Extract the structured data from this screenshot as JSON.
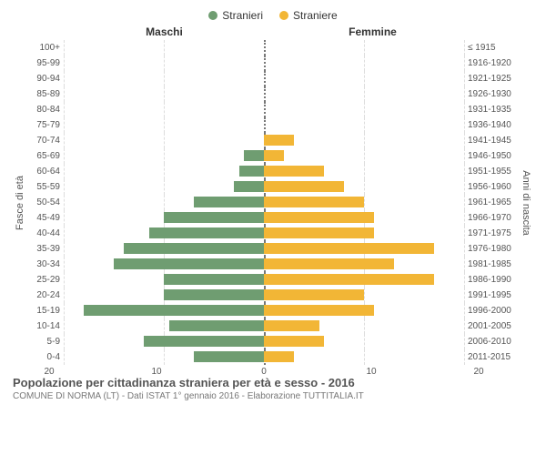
{
  "legend": {
    "male": {
      "label": "Stranieri",
      "color": "#6f9d71"
    },
    "female": {
      "label": "Straniere",
      "color": "#f2b636"
    }
  },
  "headers": {
    "maschi": "Maschi",
    "femmine": "Femmine"
  },
  "yaxis_left_label": "Fasce di età",
  "yaxis_right_label": "Anni di nascita",
  "xaxis": {
    "max": 20,
    "ticks": [
      0,
      10,
      20
    ]
  },
  "colors": {
    "male": "#6f9d71",
    "female": "#f2b636",
    "grid": "#dddddd",
    "center": "#777777"
  },
  "rows": [
    {
      "age": "100+",
      "birth": "≤ 1915",
      "m": 0,
      "f": 0
    },
    {
      "age": "95-99",
      "birth": "1916-1920",
      "m": 0,
      "f": 0
    },
    {
      "age": "90-94",
      "birth": "1921-1925",
      "m": 0,
      "f": 0
    },
    {
      "age": "85-89",
      "birth": "1926-1930",
      "m": 0,
      "f": 0
    },
    {
      "age": "80-84",
      "birth": "1931-1935",
      "m": 0,
      "f": 0
    },
    {
      "age": "75-79",
      "birth": "1936-1940",
      "m": 0,
      "f": 0
    },
    {
      "age": "70-74",
      "birth": "1941-1945",
      "m": 0,
      "f": 3
    },
    {
      "age": "65-69",
      "birth": "1946-1950",
      "m": 2,
      "f": 2
    },
    {
      "age": "60-64",
      "birth": "1951-1955",
      "m": 2.5,
      "f": 6
    },
    {
      "age": "55-59",
      "birth": "1956-1960",
      "m": 3,
      "f": 8
    },
    {
      "age": "50-54",
      "birth": "1961-1965",
      "m": 7,
      "f": 10
    },
    {
      "age": "45-49",
      "birth": "1966-1970",
      "m": 10,
      "f": 11
    },
    {
      "age": "40-44",
      "birth": "1971-1975",
      "m": 11.5,
      "f": 11
    },
    {
      "age": "35-39",
      "birth": "1976-1980",
      "m": 14,
      "f": 17
    },
    {
      "age": "30-34",
      "birth": "1981-1985",
      "m": 15,
      "f": 13
    },
    {
      "age": "25-29",
      "birth": "1986-1990",
      "m": 10,
      "f": 17
    },
    {
      "age": "20-24",
      "birth": "1991-1995",
      "m": 10,
      "f": 10
    },
    {
      "age": "15-19",
      "birth": "1996-2000",
      "m": 18,
      "f": 11
    },
    {
      "age": "10-14",
      "birth": "2001-2005",
      "m": 9.5,
      "f": 5.5
    },
    {
      "age": "5-9",
      "birth": "2006-2010",
      "m": 12,
      "f": 6
    },
    {
      "age": "0-4",
      "birth": "2011-2015",
      "m": 7,
      "f": 3
    }
  ],
  "footer": {
    "title": "Popolazione per cittadinanza straniera per età e sesso - 2016",
    "subtitle": "COMUNE DI NORMA (LT) - Dati ISTAT 1° gennaio 2016 - Elaborazione TUTTITALIA.IT"
  }
}
